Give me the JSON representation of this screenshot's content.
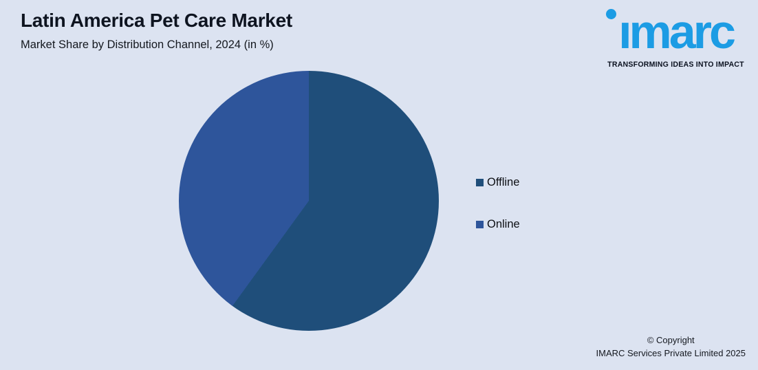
{
  "page": {
    "background_color": "#dce3f1"
  },
  "header": {
    "title": "Latin America Pet Care Market",
    "subtitle": "Market Share by Distribution Channel, 2024 (in %)"
  },
  "logo": {
    "wordmark": "imarc",
    "tagline": "TRANSFORMING IDEAS INTO IMPACT",
    "brand_color": "#1c9ce4"
  },
  "chart_data": {
    "type": "pie",
    "title": "Latin America Pet Care Market",
    "subtitle": "Market Share by Distribution Channel, 2024 (in %)",
    "categories": [
      "Offline",
      "Online"
    ],
    "values": [
      60,
      40
    ],
    "colors": [
      "#1f4e7a",
      "#2e559b"
    ],
    "start_angle_deg": 0,
    "direction": "clockwise",
    "data_labels": false,
    "legend_position": "right"
  },
  "footer": {
    "copyright_line1": "© Copyright",
    "copyright_line2": "IMARC Services Private Limited 2025"
  }
}
